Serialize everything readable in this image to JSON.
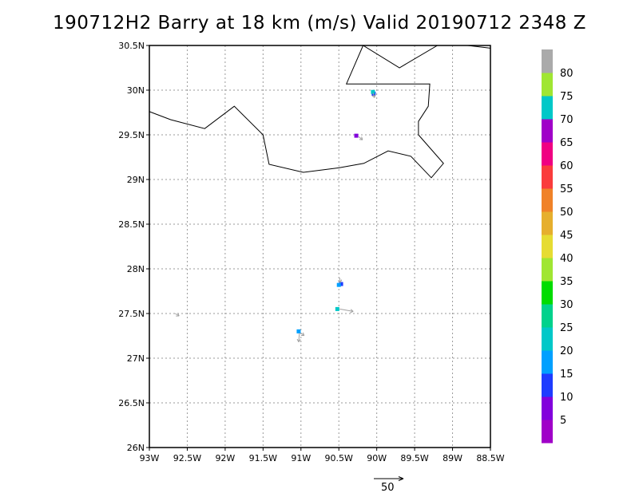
{
  "title": "190712H2 Barry at 18 km (m/s) Valid 20190712 2348 Z",
  "map": {
    "lon_range": [
      -93,
      -88.5
    ],
    "lat_range": [
      26,
      30.5
    ],
    "lon_ticks": [
      {
        "v": -93,
        "label": "93W"
      },
      {
        "v": -92.5,
        "label": "92.5W"
      },
      {
        "v": -92,
        "label": "92W"
      },
      {
        "v": -91.5,
        "label": "91.5W"
      },
      {
        "v": -91,
        "label": "91W"
      },
      {
        "v": -90.5,
        "label": "90.5W"
      },
      {
        "v": -90,
        "label": "90W"
      },
      {
        "v": -89.5,
        "label": "89.5W"
      },
      {
        "v": -89,
        "label": "89W"
      },
      {
        "v": -88.5,
        "label": "88.5W"
      }
    ],
    "lat_ticks": [
      {
        "v": 26,
        "label": "26N"
      },
      {
        "v": 26.5,
        "label": "26.5N"
      },
      {
        "v": 27,
        "label": "27N"
      },
      {
        "v": 27.5,
        "label": "27.5N"
      },
      {
        "v": 28,
        "label": "28N"
      },
      {
        "v": 28.5,
        "label": "28.5N"
      },
      {
        "v": 29,
        "label": "29N"
      },
      {
        "v": 29.5,
        "label": "29.5N"
      },
      {
        "v": 30,
        "label": "30N"
      },
      {
        "v": 30.5,
        "label": "30.5N"
      }
    ],
    "grid": true,
    "coastline": [
      [
        -93,
        29.76
      ],
      [
        -92.72,
        29.67
      ],
      [
        -92.27,
        29.57
      ],
      [
        -91.88,
        29.82
      ],
      [
        -91.5,
        29.5
      ],
      [
        -91.42,
        29.17
      ],
      [
        -90.97,
        29.08
      ],
      [
        -90.5,
        29.13
      ],
      [
        -90.17,
        29.18
      ],
      [
        -89.85,
        29.32
      ],
      [
        -89.55,
        29.26
      ],
      [
        -89.28,
        29.02
      ],
      [
        -89.12,
        29.18
      ],
      [
        -89.45,
        29.5
      ],
      [
        -89.45,
        29.65
      ],
      [
        -89.32,
        29.82
      ],
      [
        -89.3,
        30.07
      ],
      [
        -89.85,
        30.07
      ],
      [
        -90.4,
        30.07
      ],
      [
        -90.18,
        30.5
      ],
      [
        -89.7,
        30.25
      ],
      [
        -89.2,
        30.5
      ],
      [
        -88.8,
        30.5
      ],
      [
        -88.5,
        30.47
      ]
    ],
    "wind_patches": [
      {
        "lon": -90.04,
        "lat": 29.96,
        "color": "#1e3cff"
      },
      {
        "lon": -90.05,
        "lat": 29.98,
        "color": "#00c8c8"
      },
      {
        "lon": -90.27,
        "lat": 29.49,
        "color": "#8200dc"
      },
      {
        "lon": -90.47,
        "lat": 27.83,
        "color": "#1e3cff"
      },
      {
        "lon": -90.5,
        "lat": 27.82,
        "color": "#00a0ff"
      },
      {
        "lon": -90.52,
        "lat": 27.55,
        "color": "#00c8c8"
      },
      {
        "lon": -91.03,
        "lat": 27.3,
        "color": "#00a0ff"
      }
    ],
    "vectors": [
      {
        "lon": -90.05,
        "lat": 29.97,
        "u": 0.2,
        "v": -0.6
      },
      {
        "lon": -90.24,
        "lat": 29.48,
        "u": 0.5,
        "v": -0.4
      },
      {
        "lon": -90.49,
        "lat": 27.9,
        "u": 0.1,
        "v": -0.6
      },
      {
        "lon": -90.49,
        "lat": 27.55,
        "u": 1.7,
        "v": -0.3
      },
      {
        "lon": -91.02,
        "lat": 27.28,
        "u": -0.1,
        "v": -1.1
      },
      {
        "lon": -91.0,
        "lat": 27.28,
        "u": 0.4,
        "v": -0.3
      },
      {
        "lon": -92.66,
        "lat": 27.5,
        "u": 0.5,
        "v": -0.3
      }
    ],
    "reference_vector": {
      "label": "50"
    }
  },
  "colorbar": {
    "bins": [
      {
        "color": "#a000c8",
        "label": ""
      },
      {
        "color": "#8200dc",
        "label": "5"
      },
      {
        "color": "#1e3cff",
        "label": "10"
      },
      {
        "color": "#00a0ff",
        "label": "15"
      },
      {
        "color": "#00c8c8",
        "label": "20"
      },
      {
        "color": "#00d28c",
        "label": "25"
      },
      {
        "color": "#00dc00",
        "label": "30"
      },
      {
        "color": "#a0e632",
        "label": "35"
      },
      {
        "color": "#e6dc32",
        "label": "40"
      },
      {
        "color": "#e6af2d",
        "label": "45"
      },
      {
        "color": "#f08228",
        "label": "50"
      },
      {
        "color": "#fa3c3c",
        "label": "55"
      },
      {
        "color": "#f00082",
        "label": "60"
      },
      {
        "color": "#a000c8",
        "label": "65"
      },
      {
        "color": "#00c8c8",
        "label": "70"
      },
      {
        "color": "#a0e632",
        "label": "75"
      },
      {
        "color": "#aaaaaa",
        "label": "80"
      }
    ]
  }
}
